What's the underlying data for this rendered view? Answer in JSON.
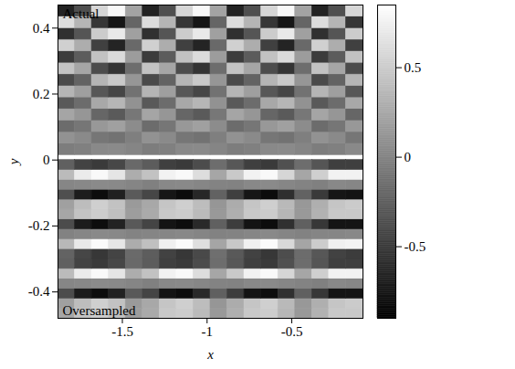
{
  "chart_data": {
    "type": "heatmap",
    "xlabel": "x",
    "ylabel": "y",
    "xlim": [
      -1.88,
      -0.08
    ],
    "ylim": [
      -0.48,
      0.47
    ],
    "xticks": [
      -1.5,
      -1,
      -0.5
    ],
    "yticks": [
      -0.4,
      -0.2,
      0,
      0.2,
      0.4
    ],
    "colorbar": {
      "range": [
        -0.9,
        0.85
      ],
      "ticks": [
        -0.5,
        0,
        0.5
      ]
    },
    "heatmap": [
      {
        "label": "Oversampled",
        "x_edges": [
          -1.88,
          -1.78,
          -1.68,
          -1.58,
          -1.48,
          -1.38,
          -1.28,
          -1.18,
          -1.08,
          -0.98,
          -0.88,
          -0.78,
          -0.68,
          -0.58,
          -0.48,
          -0.38,
          -0.28,
          -0.18,
          -0.08
        ],
        "y_edges": [
          -0.48,
          -0.45,
          -0.42,
          -0.39,
          -0.36,
          -0.33,
          -0.3,
          -0.27,
          -0.24,
          -0.21,
          -0.18,
          -0.15,
          -0.12,
          -0.09,
          -0.06,
          -0.03,
          0
        ],
        "values": [
          [
            0.24,
            0.44,
            0.5,
            0.41,
            0.18,
            0.27,
            0.47,
            0.5,
            0.38,
            0.15,
            0.3,
            0.47,
            0.5,
            0.35,
            0.15,
            0.32,
            0.47,
            0.47
          ],
          [
            0.2,
            0.4,
            0.52,
            0.43,
            0.16,
            0.25,
            0.45,
            0.52,
            0.4,
            0.13,
            0.28,
            0.45,
            0.52,
            0.37,
            0.14,
            0.3,
            0.45,
            0.49
          ],
          [
            -0.38,
            -0.71,
            -0.81,
            -0.67,
            -0.29,
            -0.43,
            -0.76,
            -0.81,
            -0.62,
            -0.24,
            -0.48,
            -0.76,
            -0.81,
            -0.57,
            -0.24,
            -0.52,
            -0.76,
            -0.76
          ],
          [
            0.02,
            0.03,
            0.05,
            0.04,
            0.01,
            -0.02,
            0.03,
            0.04,
            0.02,
            0,
            -0.01,
            0.03,
            0.05,
            0.02,
            0,
            -0.02,
            0.03,
            0.02
          ],
          [
            0.38,
            0.71,
            0.81,
            0.67,
            0.29,
            0.43,
            0.76,
            0.81,
            0.62,
            0.24,
            0.48,
            0.76,
            0.81,
            0.57,
            0.24,
            0.52,
            0.76,
            0.76
          ],
          [
            -0.24,
            -0.44,
            -0.5,
            -0.41,
            -0.18,
            -0.27,
            -0.47,
            -0.5,
            -0.38,
            -0.15,
            -0.3,
            -0.47,
            -0.5,
            -0.35,
            -0.15,
            -0.32,
            -0.47,
            -0.47
          ],
          [
            -0.22,
            -0.42,
            -0.52,
            -0.43,
            -0.17,
            -0.26,
            -0.45,
            -0.52,
            -0.4,
            -0.14,
            -0.29,
            -0.45,
            -0.52,
            -0.37,
            -0.16,
            -0.3,
            -0.45,
            -0.49
          ],
          [
            0.36,
            0.7,
            0.82,
            0.68,
            0.28,
            0.42,
            0.75,
            0.82,
            0.63,
            0.23,
            0.47,
            0.75,
            0.82,
            0.58,
            0.23,
            0.5,
            0.75,
            0.77
          ],
          [
            -0.01,
            0.02,
            0.04,
            0.03,
            0,
            0.01,
            0.02,
            0.03,
            0.01,
            -0.01,
            0,
            0.02,
            0.04,
            0.01,
            -0.01,
            0.01,
            0.02,
            0.03
          ],
          [
            -0.38,
            -0.71,
            -0.81,
            -0.67,
            -0.29,
            -0.43,
            -0.76,
            -0.81,
            -0.62,
            -0.24,
            -0.48,
            -0.76,
            -0.81,
            -0.57,
            -0.24,
            -0.52,
            -0.76,
            -0.76
          ],
          [
            0.24,
            0.44,
            0.5,
            0.41,
            0.18,
            0.27,
            0.47,
            0.5,
            0.38,
            0.15,
            0.3,
            0.47,
            0.5,
            0.35,
            0.15,
            0.32,
            0.47,
            0.47
          ],
          [
            0.2,
            0.4,
            0.52,
            0.43,
            0.16,
            0.25,
            0.45,
            0.52,
            0.4,
            0.13,
            0.28,
            0.45,
            0.52,
            0.37,
            0.14,
            0.3,
            0.45,
            0.49
          ],
          [
            -0.36,
            -0.7,
            -0.82,
            -0.68,
            -0.28,
            -0.42,
            -0.75,
            -0.82,
            -0.63,
            -0.23,
            -0.47,
            -0.75,
            -0.82,
            -0.58,
            -0.23,
            -0.5,
            -0.75,
            -0.77
          ],
          [
            0.02,
            0.03,
            0.05,
            0.04,
            0.01,
            -0.02,
            0.03,
            0.04,
            0.02,
            0,
            -0.01,
            0.03,
            0.05,
            0.02,
            0,
            -0.02,
            0.03,
            0.02
          ],
          [
            0.38,
            0.71,
            0.81,
            0.67,
            0.29,
            0.43,
            0.76,
            0.81,
            0.62,
            0.24,
            0.48,
            0.76,
            0.81,
            0.57,
            0.24,
            0.52,
            0.76,
            0.76
          ],
          [
            -0.24,
            -0.44,
            -0.5,
            -0.41,
            -0.18,
            -0.27,
            -0.47,
            -0.5,
            -0.38,
            -0.15,
            -0.3,
            -0.47,
            -0.5,
            -0.35,
            -0.15,
            -0.32,
            -0.47,
            -0.47
          ]
        ]
      },
      {
        "label": "Actual",
        "x_edges": [
          -1.88,
          -1.78,
          -1.68,
          -1.58,
          -1.48,
          -1.38,
          -1.28,
          -1.18,
          -1.08,
          -0.98,
          -0.88,
          -0.78,
          -0.68,
          -0.58,
          -0.48,
          -0.38,
          -0.28,
          -0.18,
          -0.08
        ],
        "y_edges": [
          0.015,
          0.05,
          0.085,
          0.12,
          0.155,
          0.19,
          0.225,
          0.26,
          0.295,
          0.33,
          0.365,
          0.4,
          0.435,
          0.47
        ],
        "values": [
          [
            -0.04,
            -0.02,
            0.04,
            0.05,
            0.01,
            -0.04,
            -0.02,
            0.04,
            0.05,
            0.01,
            -0.04,
            -0.02,
            0.04,
            0.05,
            0.01,
            -0.04,
            -0.02,
            0.04
          ],
          [
            0.1,
            0.05,
            -0.09,
            -0.12,
            -0.03,
            0.1,
            0.05,
            -0.09,
            -0.12,
            -0.03,
            0.1,
            0.05,
            -0.09,
            -0.12,
            -0.03,
            0.1,
            0.05,
            -0.09
          ],
          [
            -0.16,
            -0.09,
            0.14,
            0.2,
            0.06,
            -0.16,
            -0.09,
            0.14,
            0.2,
            0.06,
            -0.16,
            -0.09,
            0.14,
            0.2,
            0.06,
            -0.16,
            -0.09,
            0.14
          ],
          [
            0.23,
            0.13,
            -0.2,
            -0.28,
            -0.08,
            0.23,
            0.13,
            -0.2,
            -0.28,
            -0.08,
            0.23,
            0.13,
            -0.2,
            -0.28,
            -0.08,
            0.23,
            0.13,
            -0.2
          ],
          [
            -0.29,
            -0.16,
            0.25,
            0.35,
            0.1,
            -0.29,
            -0.16,
            0.25,
            0.35,
            0.1,
            -0.29,
            -0.16,
            0.25,
            0.35,
            0.1,
            -0.29,
            -0.16,
            0.25
          ],
          [
            0.34,
            0.19,
            -0.3,
            -0.42,
            -0.12,
            0.34,
            0.19,
            -0.3,
            -0.42,
            -0.12,
            0.34,
            0.19,
            -0.3,
            -0.42,
            -0.12,
            0.34,
            0.19,
            -0.3
          ],
          [
            -0.39,
            -0.22,
            0.34,
            0.48,
            0.13,
            -0.39,
            -0.22,
            0.34,
            0.48,
            0.13,
            -0.39,
            -0.22,
            0.34,
            0.48,
            0.13,
            -0.39,
            -0.22,
            0.34
          ],
          [
            0.44,
            0.24,
            -0.38,
            -0.54,
            -0.15,
            0.44,
            0.24,
            -0.38,
            -0.54,
            -0.15,
            0.44,
            0.24,
            -0.38,
            -0.54,
            -0.15,
            0.44,
            0.24,
            -0.38
          ],
          [
            -0.49,
            -0.27,
            0.43,
            0.6,
            0.17,
            -0.49,
            -0.27,
            0.43,
            0.6,
            0.17,
            -0.49,
            -0.27,
            0.43,
            0.6,
            0.17,
            -0.49,
            -0.27,
            0.43
          ],
          [
            0.53,
            0.29,
            -0.46,
            -0.65,
            -0.18,
            0.53,
            0.29,
            -0.46,
            -0.65,
            -0.18,
            0.53,
            0.29,
            -0.46,
            -0.65,
            -0.18,
            0.53,
            0.29,
            -0.46
          ],
          [
            -0.57,
            -0.32,
            0.5,
            0.7,
            0.2,
            -0.57,
            -0.32,
            0.5,
            0.7,
            0.2,
            -0.57,
            -0.32,
            0.5,
            0.7,
            0.2,
            -0.57,
            -0.32,
            0.5
          ],
          [
            0.62,
            0.34,
            -0.53,
            -0.75,
            -0.21,
            0.62,
            0.34,
            -0.53,
            -0.75,
            -0.21,
            0.62,
            0.34,
            -0.53,
            -0.75,
            -0.21,
            0.62,
            0.34,
            -0.53
          ],
          [
            -0.66,
            -0.36,
            0.57,
            0.8,
            0.22,
            -0.66,
            -0.36,
            0.57,
            0.8,
            0.22,
            -0.66,
            -0.36,
            0.57,
            0.8,
            0.22,
            -0.66,
            -0.36,
            0.57
          ]
        ]
      }
    ]
  }
}
